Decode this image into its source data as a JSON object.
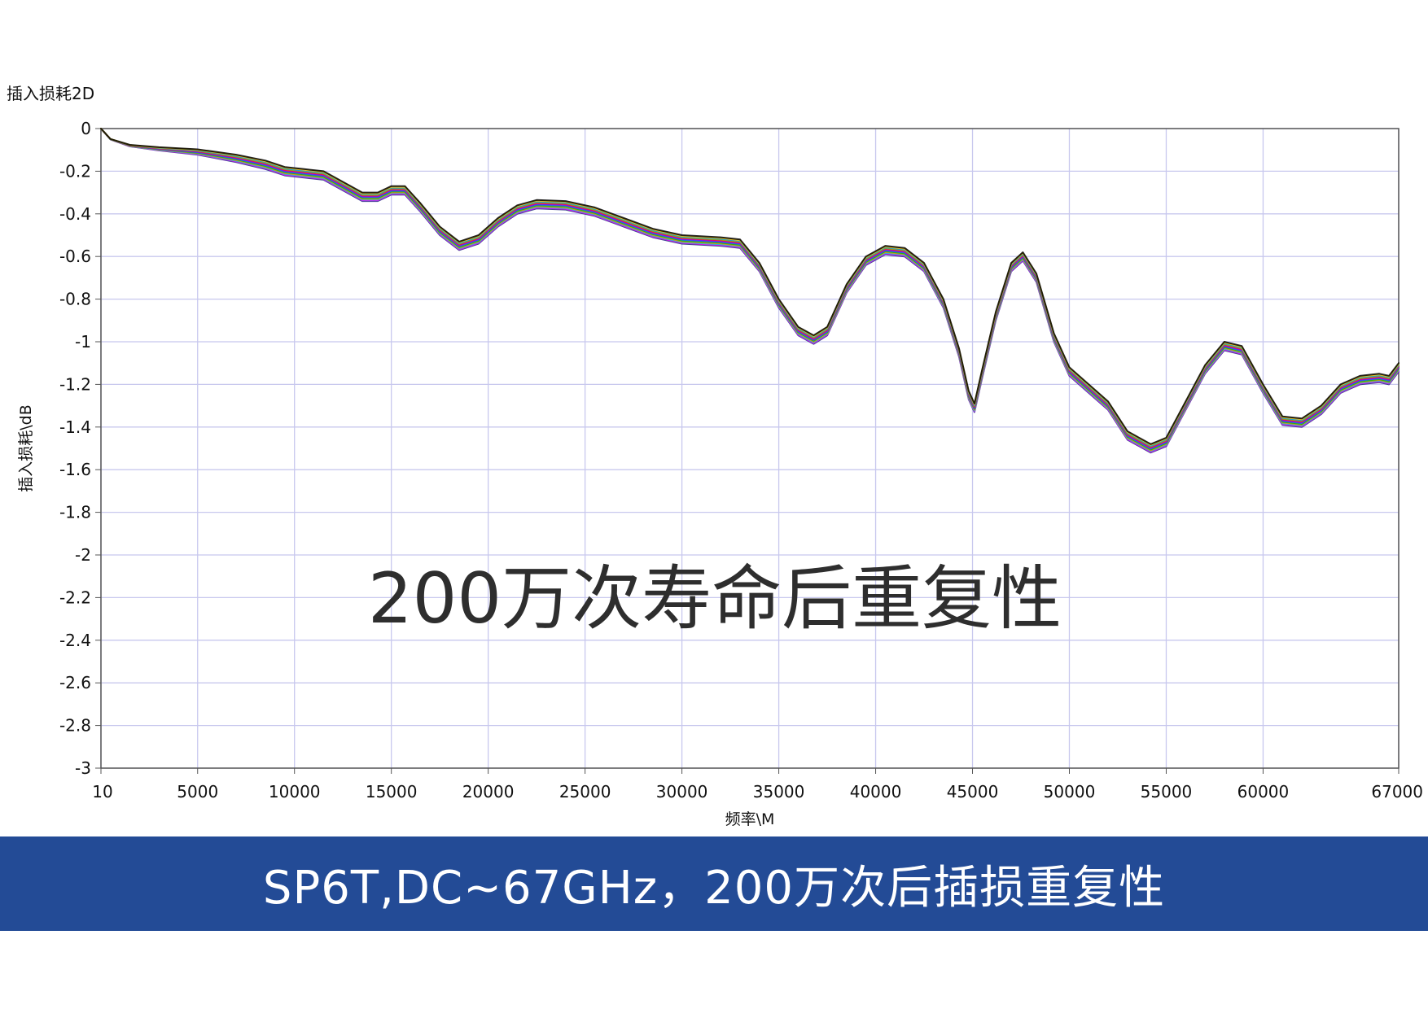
{
  "colors": {
    "banner": "#234b96",
    "grid": "#c8c8ee",
    "axis": "#555555",
    "trace_palette": [
      "#1f2a80",
      "#ff00ff",
      "#00d0d0",
      "#ff8000",
      "#00c000",
      "#2060ff",
      "#8000ff",
      "#ff0040",
      "#80c000",
      "#0090ff",
      "#ffc000",
      "#000000"
    ]
  },
  "overlay_text": "200万次寿命后重复性",
  "caption": "SP6T,DC~67GHz，200万次后插损重复性",
  "chart_data": {
    "type": "line",
    "title": "插入损耗2D",
    "xlabel": "频率\\M",
    "ylabel": "插入损耗\\dB",
    "xlim": [
      10,
      67000
    ],
    "ylim": [
      -3,
      0
    ],
    "xticks": [
      10,
      5000,
      10000,
      15000,
      20000,
      25000,
      30000,
      35000,
      40000,
      45000,
      50000,
      55000,
      60000,
      67000
    ],
    "xtick_labels": [
      "10",
      "5000",
      "10000",
      "15000",
      "20000",
      "25000",
      "30000",
      "35000",
      "40000",
      "45000",
      "50000",
      "55000",
      "60000",
      "67000"
    ],
    "yticks": [
      0,
      -0.2,
      -0.4,
      -0.6,
      -0.8,
      -1,
      -1.2,
      -1.4,
      -1.6,
      -1.8,
      -2,
      -2.2,
      -2.4,
      -2.6,
      -2.8,
      -3
    ],
    "ytick_labels": [
      "0",
      "-0.2",
      "-0.4",
      "-0.6",
      "-0.8",
      "-1",
      "-1.2",
      "-1.4",
      "-1.6",
      "-1.8",
      "-2",
      "-2.2",
      "-2.4",
      "-2.6",
      "-2.8",
      "-3"
    ],
    "grid": true,
    "legend": "none",
    "series_count": 12,
    "series_spread_db": 0.04,
    "x": [
      10,
      500,
      1500,
      3000,
      5000,
      7000,
      8500,
      9500,
      10500,
      11500,
      12500,
      13500,
      14300,
      15000,
      15700,
      16500,
      17500,
      18500,
      19500,
      20500,
      21500,
      22500,
      24000,
      25500,
      27000,
      28500,
      30000,
      32000,
      33000,
      34000,
      35000,
      36000,
      36800,
      37500,
      38500,
      39500,
      40500,
      41500,
      42500,
      43500,
      44300,
      44800,
      45100,
      45500,
      46200,
      47000,
      47600,
      48300,
      49200,
      50000,
      51000,
      52000,
      53000,
      54200,
      55000,
      56000,
      57000,
      58000,
      58900,
      60000,
      61000,
      62000,
      63000,
      64000,
      65000,
      66000,
      66500,
      67000
    ],
    "y": [
      0,
      -0.05,
      -0.08,
      -0.095,
      -0.11,
      -0.14,
      -0.17,
      -0.2,
      -0.21,
      -0.22,
      -0.27,
      -0.32,
      -0.32,
      -0.29,
      -0.29,
      -0.37,
      -0.48,
      -0.55,
      -0.52,
      -0.44,
      -0.38,
      -0.355,
      -0.36,
      -0.39,
      -0.44,
      -0.49,
      -0.52,
      -0.53,
      -0.54,
      -0.65,
      -0.82,
      -0.95,
      -0.99,
      -0.95,
      -0.75,
      -0.62,
      -0.57,
      -0.58,
      -0.65,
      -0.82,
      -1.05,
      -1.25,
      -1.31,
      -1.15,
      -0.88,
      -0.65,
      -0.6,
      -0.7,
      -0.98,
      -1.14,
      -1.22,
      -1.3,
      -1.44,
      -1.5,
      -1.47,
      -1.3,
      -1.13,
      -1.02,
      -1.04,
      -1.22,
      -1.37,
      -1.38,
      -1.32,
      -1.22,
      -1.18,
      -1.17,
      -1.18,
      -1.12
    ]
  }
}
